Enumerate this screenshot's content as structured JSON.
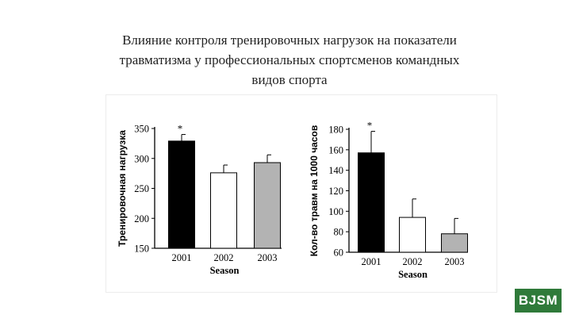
{
  "slide": {
    "title_lines": [
      "Влияние контроля тренировочных нагрузок на показатели",
      "травматизма у профессиональных спортсменов командных",
      "видов спорта"
    ],
    "logo_text": "BJSM"
  },
  "chart_data": [
    {
      "type": "bar",
      "categories": [
        "2001",
        "2002",
        "2003"
      ],
      "values": [
        329,
        276,
        293
      ],
      "error_upper": [
        340,
        289,
        306
      ],
      "bar_colors": [
        "#000000",
        "#ffffff",
        "#b3b3b3"
      ],
      "annotations": [
        "*",
        "",
        ""
      ],
      "xlabel": "Season",
      "ylabel": "Тренировочная нагрузка",
      "ylim": [
        150,
        350
      ],
      "yticks": [
        150,
        200,
        250,
        300,
        350
      ]
    },
    {
      "type": "bar",
      "categories": [
        "2001",
        "2002",
        "2003"
      ],
      "values": [
        157,
        94,
        78
      ],
      "error_upper": [
        178,
        112,
        93
      ],
      "bar_colors": [
        "#000000",
        "#ffffff",
        "#b3b3b3"
      ],
      "annotations": [
        "*",
        "",
        ""
      ],
      "xlabel": "Season",
      "ylabel": "Кол-во травм на 1000 часов",
      "ylim": [
        60,
        180
      ],
      "yticks": [
        60,
        80,
        100,
        120,
        140,
        160,
        180
      ]
    }
  ]
}
